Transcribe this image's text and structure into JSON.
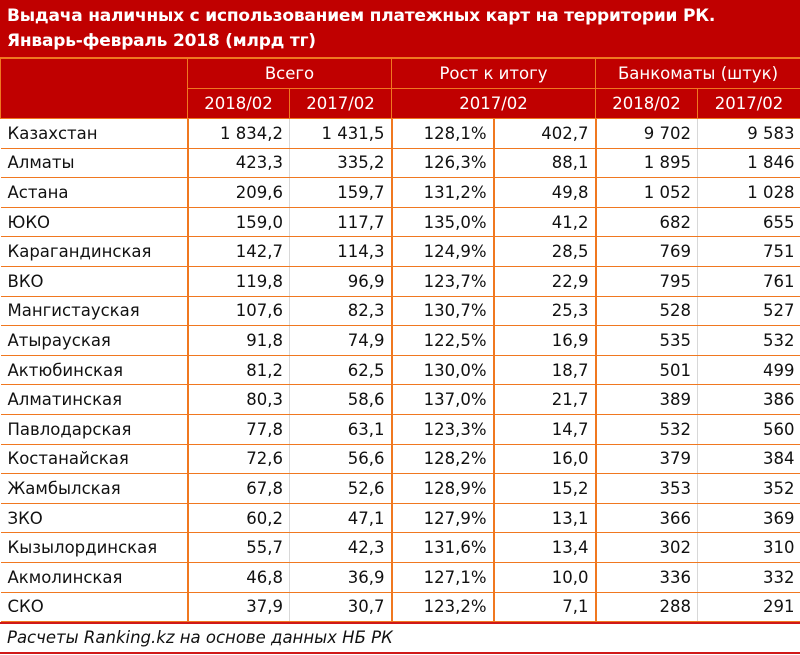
{
  "title": {
    "line1": "Выдача наличных с использованием платежных карт на территории РК.",
    "line2": "Январь-февраль 2018 (млрд тг)"
  },
  "header": {
    "groups": [
      "Всего",
      "Рост к итогу",
      "Банкоматы (штук)"
    ],
    "subheaders": [
      "2018/02",
      "2017/02",
      "2017/02",
      "2018/02",
      "2017/02"
    ]
  },
  "colors": {
    "header_bg": "#C00000",
    "grid_orange": "#F07820",
    "footer_rule": "#D01818"
  },
  "rows": [
    {
      "region": "Казахстан",
      "total_2018": "1 834,2",
      "total_2017": "1 431,5",
      "growth_pct": "128,1%",
      "growth_abs": "402,7",
      "atm_2018": "9 702",
      "atm_2017": "9 583"
    },
    {
      "region": "Алматы",
      "total_2018": "423,3",
      "total_2017": "335,2",
      "growth_pct": "126,3%",
      "growth_abs": "88,1",
      "atm_2018": "1 895",
      "atm_2017": "1 846"
    },
    {
      "region": "Астана",
      "total_2018": "209,6",
      "total_2017": "159,7",
      "growth_pct": "131,2%",
      "growth_abs": "49,8",
      "atm_2018": "1 052",
      "atm_2017": "1 028"
    },
    {
      "region": "ЮКО",
      "total_2018": "159,0",
      "total_2017": "117,7",
      "growth_pct": "135,0%",
      "growth_abs": "41,2",
      "atm_2018": "682",
      "atm_2017": "655"
    },
    {
      "region": "Карагандинская",
      "total_2018": "142,7",
      "total_2017": "114,3",
      "growth_pct": "124,9%",
      "growth_abs": "28,5",
      "atm_2018": "769",
      "atm_2017": "751"
    },
    {
      "region": "ВКО",
      "total_2018": "119,8",
      "total_2017": "96,9",
      "growth_pct": "123,7%",
      "growth_abs": "22,9",
      "atm_2018": "795",
      "atm_2017": "761"
    },
    {
      "region": "Мангистауская",
      "total_2018": "107,6",
      "total_2017": "82,3",
      "growth_pct": "130,7%",
      "growth_abs": "25,3",
      "atm_2018": "528",
      "atm_2017": "527"
    },
    {
      "region": "Атырауская",
      "total_2018": "91,8",
      "total_2017": "74,9",
      "growth_pct": "122,5%",
      "growth_abs": "16,9",
      "atm_2018": "535",
      "atm_2017": "532"
    },
    {
      "region": "Актюбинская",
      "total_2018": "81,2",
      "total_2017": "62,5",
      "growth_pct": "130,0%",
      "growth_abs": "18,7",
      "atm_2018": "501",
      "atm_2017": "499"
    },
    {
      "region": "Алматинская",
      "total_2018": "80,3",
      "total_2017": "58,6",
      "growth_pct": "137,0%",
      "growth_abs": "21,7",
      "atm_2018": "389",
      "atm_2017": "386"
    },
    {
      "region": "Павлодарская",
      "total_2018": "77,8",
      "total_2017": "63,1",
      "growth_pct": "123,3%",
      "growth_abs": "14,7",
      "atm_2018": "532",
      "atm_2017": "560"
    },
    {
      "region": "Костанайская",
      "total_2018": "72,6",
      "total_2017": "56,6",
      "growth_pct": "128,2%",
      "growth_abs": "16,0",
      "atm_2018": "379",
      "atm_2017": "384"
    },
    {
      "region": "Жамбылская",
      "total_2018": "67,8",
      "total_2017": "52,6",
      "growth_pct": "128,9%",
      "growth_abs": "15,2",
      "atm_2018": "353",
      "atm_2017": "352"
    },
    {
      "region": "ЗКО",
      "total_2018": "60,2",
      "total_2017": "47,1",
      "growth_pct": "127,9%",
      "growth_abs": "13,1",
      "atm_2018": "366",
      "atm_2017": "369"
    },
    {
      "region": "Кызылординская",
      "total_2018": "55,7",
      "total_2017": "42,3",
      "growth_pct": "131,6%",
      "growth_abs": "13,4",
      "atm_2018": "302",
      "atm_2017": "310"
    },
    {
      "region": "Акмолинская",
      "total_2018": "46,8",
      "total_2017": "36,9",
      "growth_pct": "127,1%",
      "growth_abs": "10,0",
      "atm_2018": "336",
      "atm_2017": "332"
    },
    {
      "region": "СКО",
      "total_2018": "37,9",
      "total_2017": "30,7",
      "growth_pct": "123,2%",
      "growth_abs": "7,1",
      "atm_2018": "288",
      "atm_2017": "291"
    }
  ],
  "footer": {
    "source": "Расчеты Ranking.kz на основе данных НБ РК"
  }
}
